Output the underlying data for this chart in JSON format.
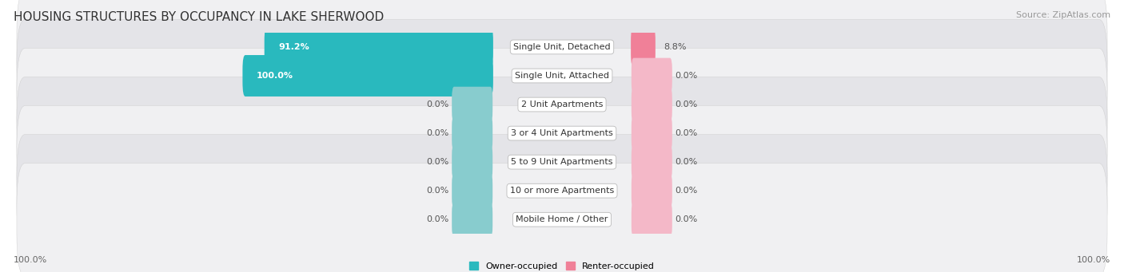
{
  "title": "HOUSING STRUCTURES BY OCCUPANCY IN LAKE SHERWOOD",
  "source": "Source: ZipAtlas.com",
  "categories": [
    "Single Unit, Detached",
    "Single Unit, Attached",
    "2 Unit Apartments",
    "3 or 4 Unit Apartments",
    "5 to 9 Unit Apartments",
    "10 or more Apartments",
    "Mobile Home / Other"
  ],
  "owner_pct": [
    91.2,
    100.0,
    0.0,
    0.0,
    0.0,
    0.0,
    0.0
  ],
  "renter_pct": [
    8.8,
    0.0,
    0.0,
    0.0,
    0.0,
    0.0,
    0.0
  ],
  "owner_color": "#29B9BE",
  "renter_color": "#F08098",
  "owner_color_zero": "#88CCCE",
  "renter_color_zero": "#F4B8C8",
  "row_bg_light": "#F0F0F2",
  "row_bg_dark": "#E4E4E8",
  "title_fontsize": 11,
  "source_fontsize": 8,
  "label_fontsize": 8,
  "bar_label_fontsize": 8,
  "legend_fontsize": 8,
  "axis_label_fontsize": 8,
  "figsize": [
    14.06,
    3.41
  ],
  "dpi": 100
}
